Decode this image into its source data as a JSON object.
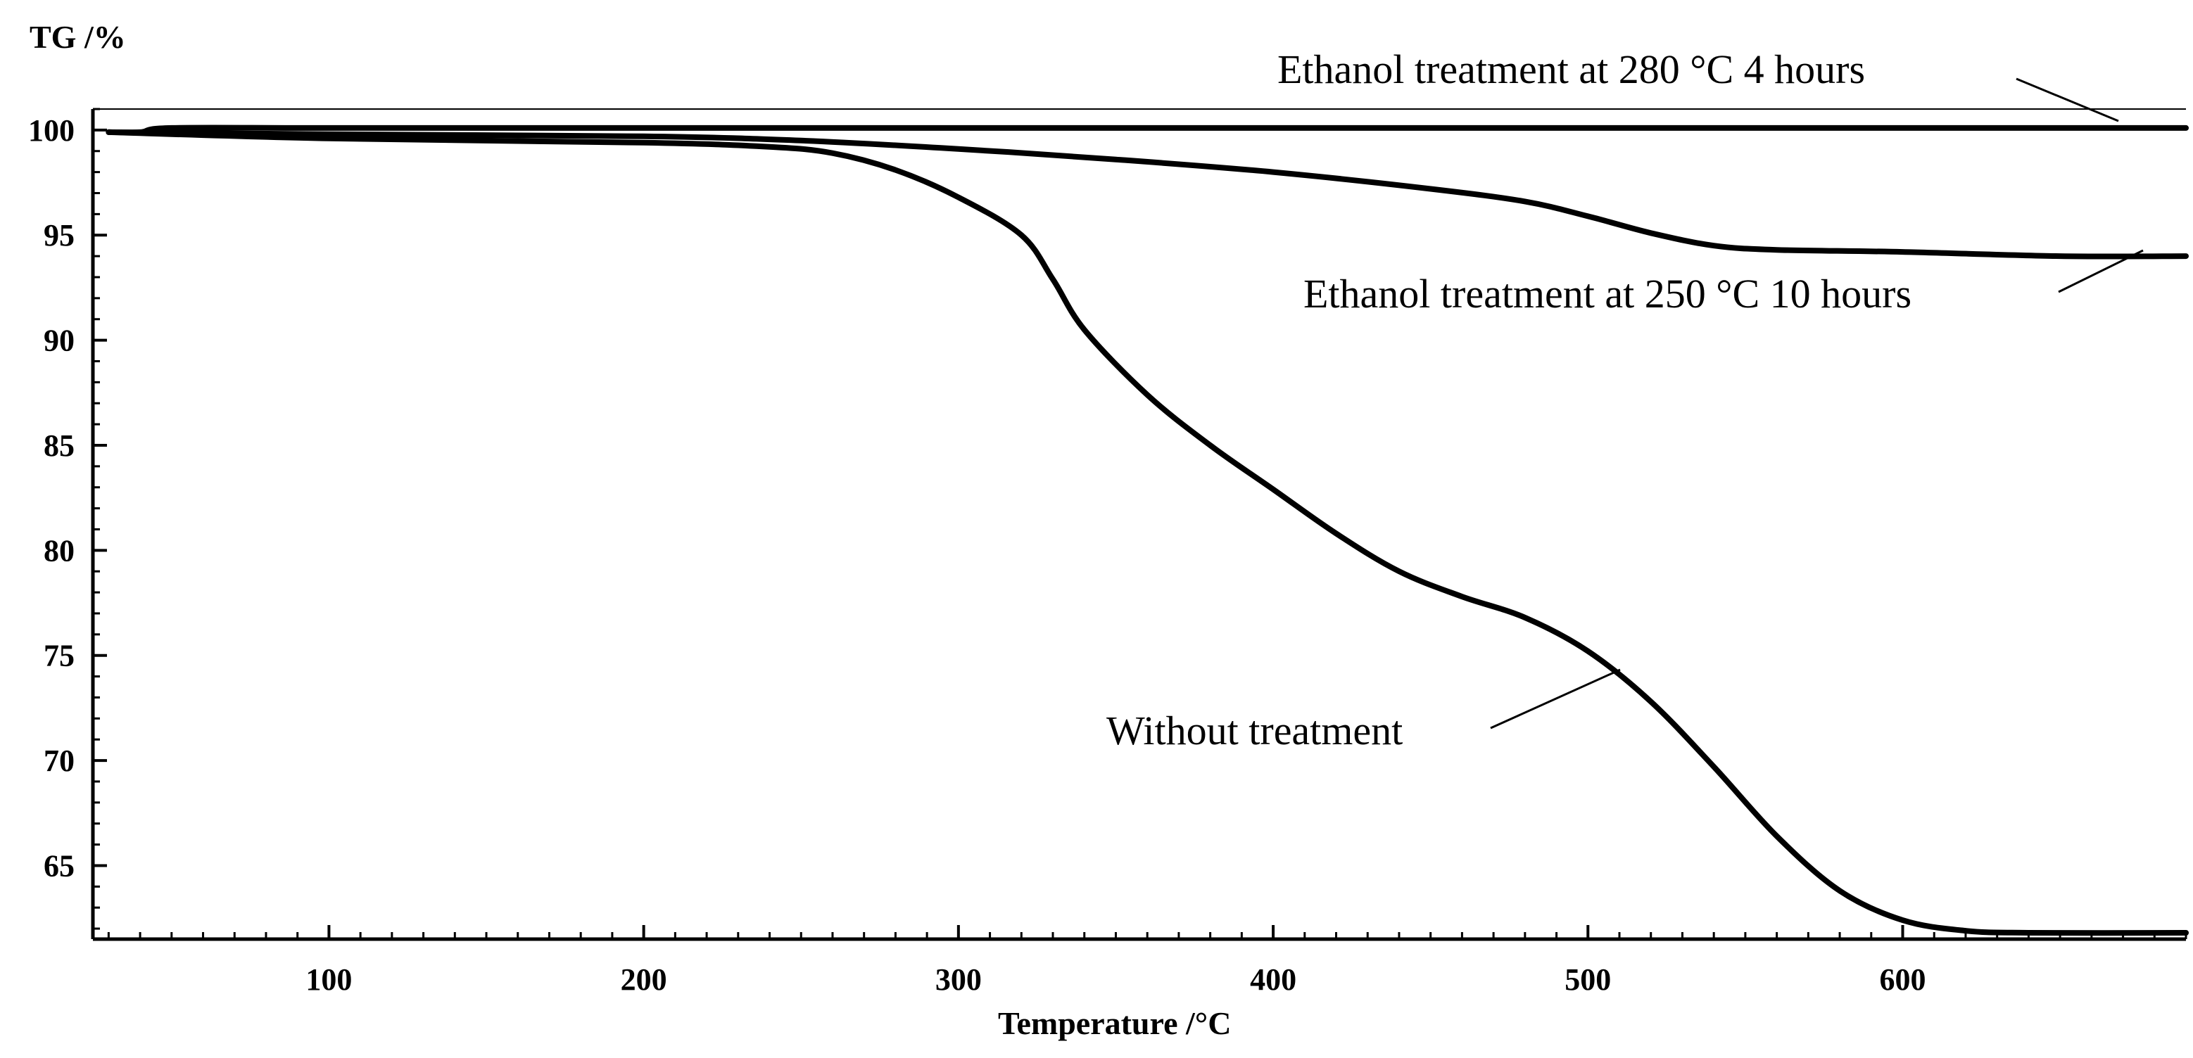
{
  "chart_data": {
    "type": "line",
    "title": "",
    "xlabel": "Temperature /°C",
    "ylabel": "TG /%",
    "xlim": [
      25,
      690
    ],
    "ylim": [
      61.5,
      101
    ],
    "xticks": [
      100,
      200,
      300,
      400,
      500,
      600
    ],
    "yticks": [
      65,
      70,
      75,
      80,
      85,
      90,
      95,
      100
    ],
    "grid": false,
    "legend": "none (curves labeled by annotations)",
    "series": [
      {
        "name": "Ethanol treatment at 280 °C 4 hours",
        "x": [
          30,
          40,
          50,
          100,
          200,
          300,
          400,
          500,
          600,
          690
        ],
        "y": [
          99.9,
          99.9,
          100.1,
          100.1,
          100.1,
          100.1,
          100.1,
          100.1,
          100.1,
          100.1
        ]
      },
      {
        "name": "Ethanol treatment at 250 °C 10 hours",
        "x": [
          30,
          100,
          200,
          250,
          300,
          350,
          400,
          450,
          480,
          500,
          520,
          540,
          560,
          600,
          650,
          690
        ],
        "y": [
          99.9,
          99.8,
          99.7,
          99.5,
          99.1,
          98.6,
          98.0,
          97.2,
          96.6,
          95.9,
          95.1,
          94.5,
          94.3,
          94.2,
          94.0,
          94.0
        ]
      },
      {
        "name": "Without treatment",
        "x": [
          30,
          100,
          200,
          240,
          260,
          280,
          300,
          320,
          330,
          340,
          360,
          380,
          400,
          420,
          440,
          460,
          480,
          500,
          520,
          540,
          560,
          580,
          600,
          620,
          640,
          690
        ],
        "y": [
          99.9,
          99.6,
          99.4,
          99.2,
          98.9,
          98.1,
          96.8,
          95.0,
          92.9,
          90.5,
          87.4,
          85.0,
          82.9,
          80.8,
          79.0,
          77.8,
          76.8,
          75.2,
          72.8,
          69.7,
          66.4,
          63.8,
          62.4,
          61.9,
          61.8,
          61.8
        ]
      }
    ],
    "annotations": [
      {
        "text": "Ethanol treatment at 280 °C 4 hours",
        "target_x": 680,
        "target_y": 100.1
      },
      {
        "text": "Ethanol treatment at 250 °C 10 hours",
        "target_x": 680,
        "target_y": 94.0
      },
      {
        "text": "Without treatment",
        "target_x": 515,
        "target_y": 74.0
      }
    ]
  }
}
